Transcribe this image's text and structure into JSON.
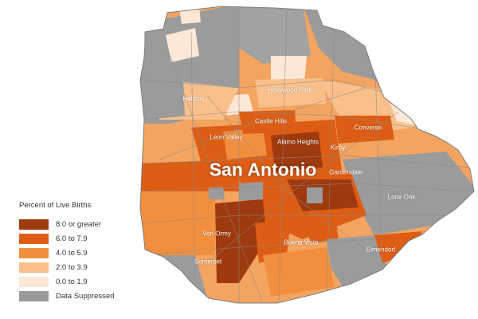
{
  "map": {
    "city_name": "San Antonio",
    "places": [
      {
        "id": "helotes",
        "name": "Helotes"
      },
      {
        "id": "hollywood-park",
        "name": "Hollywood Park"
      },
      {
        "id": "castle-hills",
        "name": "Castle Hills"
      },
      {
        "id": "converse",
        "name": "Converse"
      },
      {
        "id": "leon-valley",
        "name": "Leon Valley"
      },
      {
        "id": "alamo-heights",
        "name": "Alamo Heights"
      },
      {
        "id": "kirby",
        "name": "Kirby"
      },
      {
        "id": "gardendale",
        "name": "Gardendale"
      },
      {
        "id": "lone-oak",
        "name": "Lone Oak"
      },
      {
        "id": "von-ormy",
        "name": "Von Ormy"
      },
      {
        "id": "buena-vista",
        "name": "Buena Vista"
      },
      {
        "id": "elmendorf",
        "name": "Elmendorf"
      },
      {
        "id": "somerset",
        "name": "Somerset"
      }
    ]
  },
  "legend": {
    "title": "Percent of Live Births",
    "items": [
      {
        "label": "8.0 or greater",
        "color": "#9e3a0e"
      },
      {
        "label": "6.0 to 7.9",
        "color": "#dd5d15"
      },
      {
        "label": "4.0 to 5.9",
        "color": "#f28f3e"
      },
      {
        "label": "2.0 to 3.9",
        "color": "#f9c08c"
      },
      {
        "label": "0.0 to 1.9",
        "color": "#fde8d8"
      },
      {
        "label": "Data Suppressed",
        "color": "#9b9b9b"
      }
    ]
  }
}
